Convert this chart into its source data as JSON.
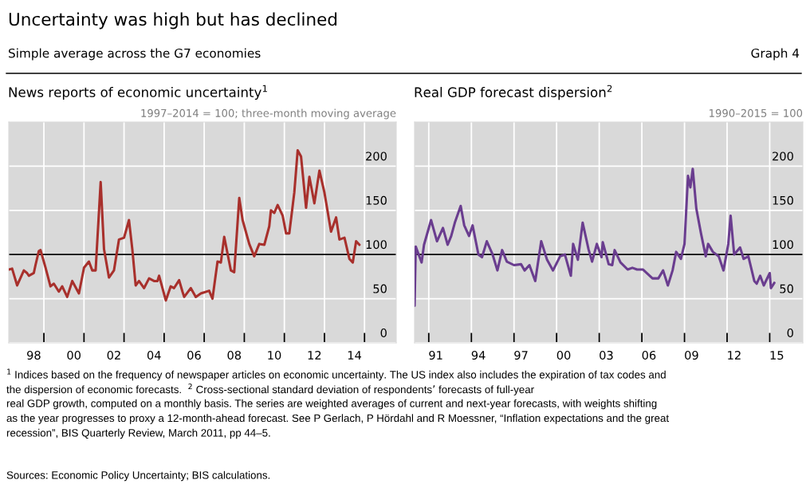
{
  "chart_data": [
    {
      "type": "line",
      "title": "News reports of economic uncertainty$^{1}$",
      "subtitle": "1997–2014 = 100; three-month moving average",
      "annotations": [
        "Uncertainty was high but has declined",
        "Simple average across the G7 economies",
        "Graph 4",
        "$^{1}$ Indices based on the frequency of newspaper articles on economic uncertainty. The US index also includes the expiration of tax codes and",
        "the dispersion of economic forecasts.  $^{2}$ Cross-sectional standard deviation of respondents’ forecasts of full-year",
        "real GDP growth, computed on a monthly basis. The series are weighted averages of current and next-year forecasts, with weights shifting",
        "as the year progresses to proxy a 12-month-ahead forecast. See P Gerlach, P Hördahl and R Moessner, “Inflation expectations and the great",
        "recession”, BIS Quarterly Review, March 2011, pp 44–5.",
        "Sources: Economic Policy Uncertainty; BIS calculations."
      ],
      "series": [
        {
          "color": "#a8302c",
          "x": [
            "1997-04",
            "1997-06",
            "1997-09",
            "1998-01",
            "1998-03",
            "1998-04",
            "1998-07",
            "1998-08",
            "1998-10",
            "1998-11",
            "1999-02",
            "1999-05",
            "1999-07",
            "1999-10",
            "1999-12",
            "2000-03",
            "2000-06",
            "2000-10",
            "2001-01",
            "2001-04",
            "2001-06",
            "2001-08",
            "2001-11",
            "2002-01",
            "2002-04",
            "2002-07",
            "2002-10",
            "2003-01",
            "2003-04",
            "2003-06",
            "2003-08",
            "2003-10",
            "2004-01",
            "2004-04",
            "2004-07",
            "2004-09",
            "2004-10",
            "2005-02",
            "2005-05",
            "2005-07",
            "2005-10",
            "2005-12",
            "2006-01",
            "2006-05",
            "2006-08",
            "2006-11",
            "2007-04",
            "2007-06",
            "2007-09",
            "2007-11",
            "2008-01",
            "2008-05",
            "2008-07",
            "2008-10",
            "2008-12",
            "2009-04",
            "2009-07",
            "2009-10",
            "2010-01",
            "2010-04",
            "2010-05",
            "2010-07",
            "2010-09",
            "2010-12",
            "2011-02",
            "2011-04",
            "2011-07",
            "2011-09",
            "2011-11",
            "2012-02",
            "2012-04",
            "2012-07",
            "2012-10",
            "2013-01",
            "2013-05",
            "2013-08",
            "2013-10",
            "2014-01",
            "2014-04",
            "2014-06",
            "2014-08",
            "2014-10"
          ],
          "values": [
            83,
            84,
            65,
            82,
            79,
            76,
            79,
            88,
            104,
            105,
            85,
            64,
            67,
            58,
            64,
            52,
            70,
            56,
            85,
            92,
            82,
            82,
            182,
            106,
            74,
            82,
            117,
            119,
            139,
            106,
            65,
            70,
            62,
            73,
            70,
            70,
            76,
            48,
            64,
            62,
            71,
            58,
            52,
            62,
            52,
            56,
            59,
            50,
            92,
            91,
            120,
            82,
            80,
            164,
            139,
            112,
            98,
            112,
            111,
            132,
            150,
            147,
            156,
            144,
            124,
            124,
            170,
            218,
            211,
            153,
            188,
            158,
            195,
            170,
            126,
            142,
            117,
            119,
            95,
            91,
            115,
            111
          ]
        }
      ],
      "xlim": [
        "1997-04",
        "2016-08"
      ],
      "xticks": [
        {
          "value": "1999-01",
          "label": null
        },
        {
          "value": "2001-01",
          "label": null
        },
        {
          "value": "2003-01",
          "label": null
        },
        {
          "value": "2005-01",
          "label": null
        },
        {
          "value": "2007-01",
          "label": null
        },
        {
          "value": "2009-01",
          "label": null
        },
        {
          "value": "2011-01",
          "label": null
        },
        {
          "value": "2013-01",
          "label": null
        },
        {
          "value": "2015-01",
          "label": null
        },
        {
          "value": "1998-07",
          "label": "98"
        },
        {
          "value": "2000-07",
          "label": "00"
        },
        {
          "value": "2002-07",
          "label": "02"
        },
        {
          "value": "2004-07",
          "label": "04"
        },
        {
          "value": "2006-07",
          "label": "06"
        },
        {
          "value": "2008-07",
          "label": "08"
        },
        {
          "value": "2010-07",
          "label": "10"
        },
        {
          "value": "2012-07",
          "label": "12"
        },
        {
          "value": "2014-07",
          "label": "14"
        }
      ],
      "ylim": [
        0,
        250
      ],
      "yticks": [
        0,
        50,
        100,
        150,
        200
      ],
      "grid": true,
      "line_style": "solid",
      "ref_lines": [
        {
          "axis": "y",
          "value": 100,
          "color": "#000000"
        }
      ]
    },
    {
      "type": "line",
      "title": "Real GDP forecast dispersion$^{2}$",
      "subtitle": "1990–2015 = 100",
      "series": [
        {
          "color": "#6a3d8f",
          "x": [
            "1990-01",
            "1990-02",
            "1990-07",
            "1990-09",
            "1991-03",
            "1991-08",
            "1992-01",
            "1992-05",
            "1992-08",
            "1992-11",
            "1993-04",
            "1993-07",
            "1993-11",
            "1994-02",
            "1994-07",
            "1994-10",
            "1995-02",
            "1995-07",
            "1995-11",
            "1996-03",
            "1996-07",
            "1997-01",
            "1997-07",
            "1997-10",
            "1998-02",
            "1998-07",
            "1998-12",
            "1999-05",
            "1999-10",
            "2000-04",
            "2000-08",
            "2001-01",
            "2001-03",
            "2001-07",
            "2001-11",
            "2002-04",
            "2002-07",
            "2002-11",
            "2003-03",
            "2003-04",
            "2003-09",
            "2003-12",
            "2004-02",
            "2004-07",
            "2005-01",
            "2005-05",
            "2005-09",
            "2006-02",
            "2006-10",
            "2007-03",
            "2007-07",
            "2007-11",
            "2008-03",
            "2008-06",
            "2008-10",
            "2009-01",
            "2009-04",
            "2009-06",
            "2009-08",
            "2009-11",
            "2010-03",
            "2010-07",
            "2010-09",
            "2011-01",
            "2011-06",
            "2011-10",
            "2012-02",
            "2012-04",
            "2012-07",
            "2012-12",
            "2013-03",
            "2013-07",
            "2013-12",
            "2014-02",
            "2014-05",
            "2014-08",
            "2015-01",
            "2015-02",
            "2015-05"
          ],
          "values": [
            42,
            109,
            91,
            111,
            139,
            115,
            130,
            111,
            121,
            136,
            155,
            133,
            121,
            133,
            100,
            97,
            115,
            100,
            82,
            105,
            92,
            88,
            89,
            82,
            88,
            70,
            115,
            94,
            82,
            98,
            100,
            76,
            112,
            94,
            136,
            106,
            92,
            112,
            97,
            114,
            89,
            88,
            105,
            91,
            83,
            85,
            83,
            83,
            73,
            73,
            82,
            65,
            82,
            103,
            95,
            112,
            189,
            176,
            197,
            152,
            124,
            98,
            112,
            103,
            98,
            82,
            112,
            144,
            100,
            108,
            95,
            98,
            70,
            67,
            76,
            65,
            79,
            62,
            68
          ]
        }
      ],
      "xlim": [
        "1990-01",
        "2017-05"
      ],
      "xticks": [
        {
          "value": "1991-01",
          "label": null
        },
        {
          "value": "1994-01",
          "label": null
        },
        {
          "value": "1997-01",
          "label": null
        },
        {
          "value": "2000-01",
          "label": null
        },
        {
          "value": "2003-01",
          "label": null
        },
        {
          "value": "2006-01",
          "label": null
        },
        {
          "value": "2009-01",
          "label": null
        },
        {
          "value": "2012-01",
          "label": null
        },
        {
          "value": "2015-01",
          "label": null
        },
        {
          "value": "1991-07",
          "label": "91"
        },
        {
          "value": "1994-07",
          "label": "94"
        },
        {
          "value": "1997-07",
          "label": "97"
        },
        {
          "value": "2000-07",
          "label": "00"
        },
        {
          "value": "2003-07",
          "label": "03"
        },
        {
          "value": "2006-07",
          "label": "06"
        },
        {
          "value": "2009-07",
          "label": "09"
        },
        {
          "value": "2012-07",
          "label": "12"
        },
        {
          "value": "2015-07",
          "label": "15"
        }
      ],
      "ylim": [
        0,
        250
      ],
      "yticks": [
        0,
        50,
        100,
        150,
        200
      ],
      "grid": true,
      "line_style": "solid",
      "ref_lines": [
        {
          "axis": "y",
          "value": 100,
          "color": "#000000"
        }
      ]
    }
  ]
}
